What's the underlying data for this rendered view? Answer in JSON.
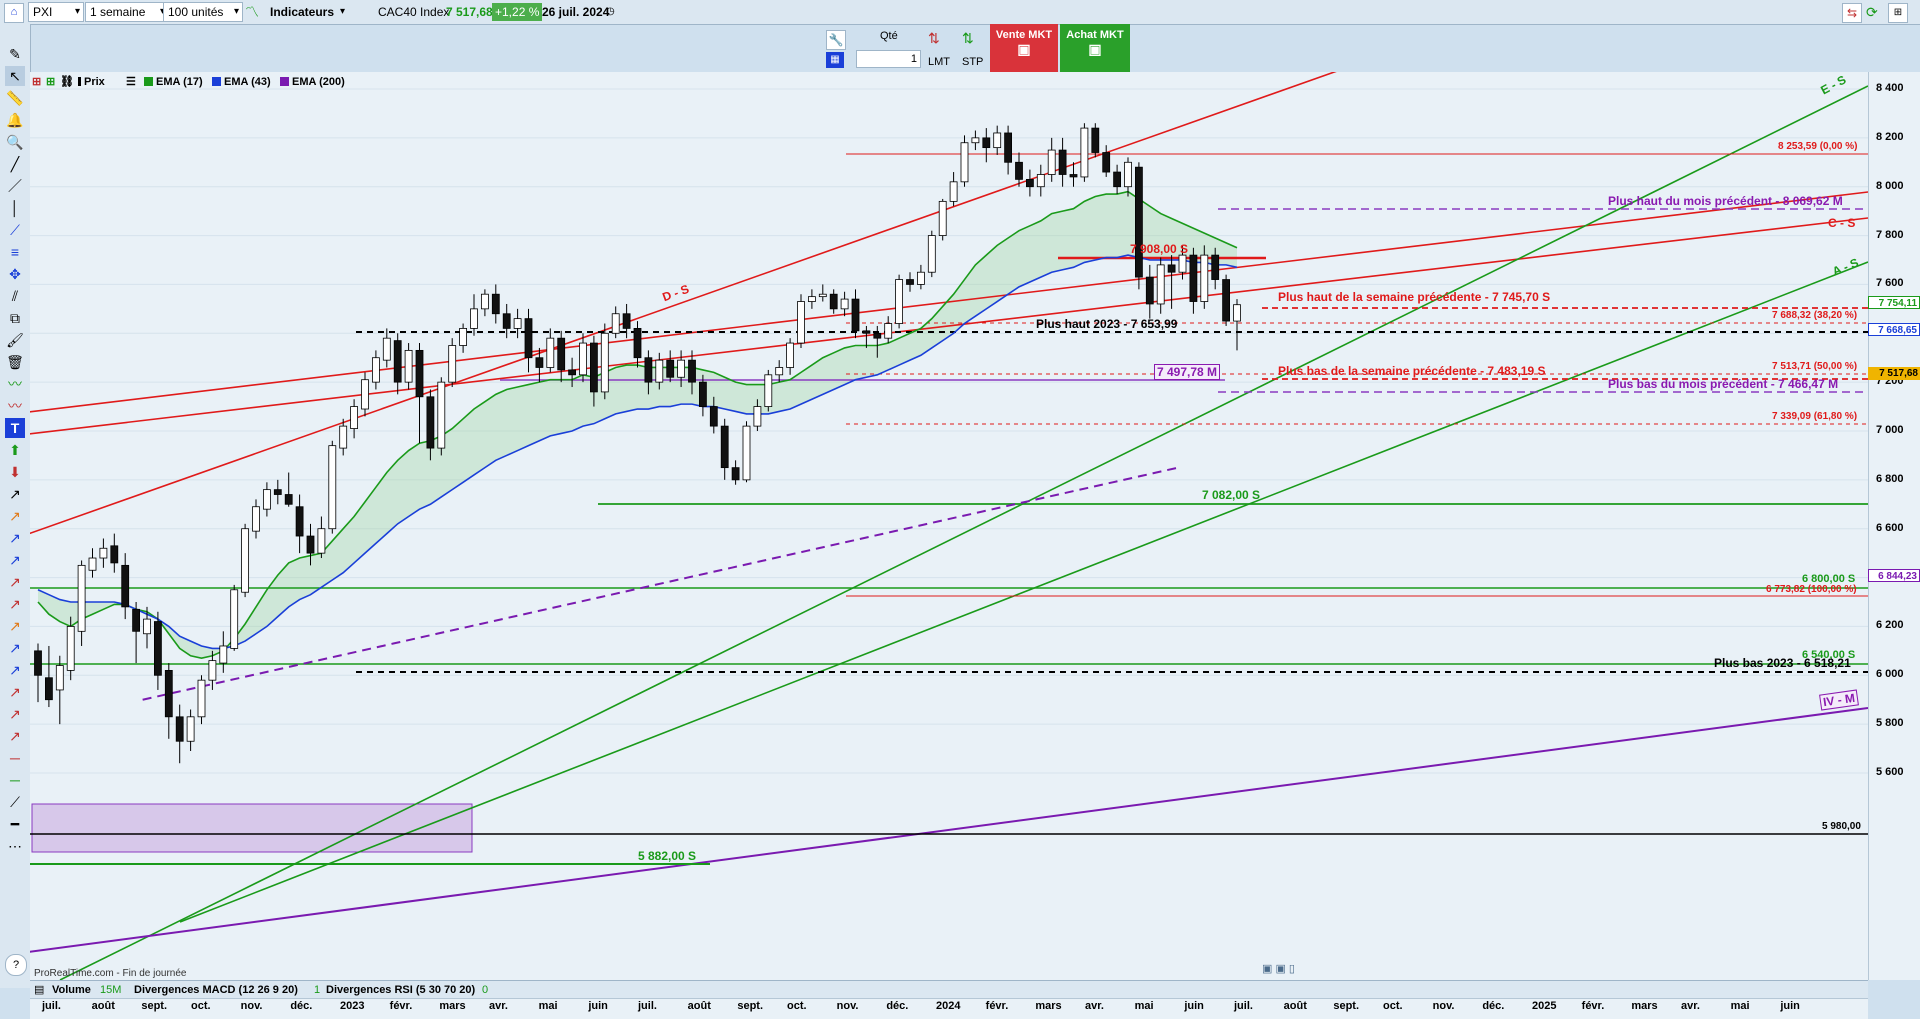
{
  "toolbar": {
    "instrument_code": "PXI",
    "timeframe": "1 semaine",
    "units": "100 unités",
    "indicators_label": "Indicateurs",
    "symbol": "CAC40 Index",
    "last_price": "7 517,68",
    "change": "+1,22 %",
    "date": "26 juil. 2024"
  },
  "order": {
    "qty_label": "Qté",
    "qty_value": "1",
    "lmt": "LMT",
    "stp": "STP",
    "sell": "Vente MKT",
    "buy": "Achat MKT"
  },
  "legend": {
    "price": "Prix",
    "ema17": "EMA (17)",
    "ema43": "EMA (43)",
    "ema200": "EMA (200)"
  },
  "colors": {
    "ema17": "#1a9a1a",
    "ema43": "#1a3fd8",
    "ema200": "#7a1ab0",
    "resistance": "#e01a1a",
    "support": "#1a9a1a"
  },
  "yaxis": {
    "labels": [
      "8 400",
      "8 200",
      "8 000",
      "7 800",
      "7 600",
      "7 400",
      "7 200",
      "7 000",
      "6 800",
      "6 600",
      "6 400",
      "6 200",
      "6 000",
      "5 800",
      "5 600"
    ],
    "tag_754": "7 754,11",
    "tag_766": "7 668,65",
    "tag_last": "7 517,68",
    "tag_684": "6 844,23"
  },
  "xaxis": {
    "labels": [
      "juil.",
      "août",
      "sept.",
      "oct.",
      "nov.",
      "déc.",
      "2023",
      "févr.",
      "mars",
      "avr.",
      "mai",
      "juin",
      "juil.",
      "août",
      "sept.",
      "oct.",
      "nov.",
      "déc.",
      "2024",
      "févr.",
      "mars",
      "avr.",
      "mai",
      "juin",
      "juil.",
      "août",
      "sept.",
      "oct.",
      "nov.",
      "déc.",
      "2025",
      "févr.",
      "mars",
      "avr.",
      "mai",
      "juin"
    ]
  },
  "annotations": {
    "fib0": "8 253,59 (0,00 %)",
    "fib382": "7 688,32 (38,20 %)",
    "fib50": "7 513,71 (50,00 %)",
    "fib618": "7 339,09 (61,80 %)",
    "fib100": "6 773,82 (100,00 %)",
    "prev_month_high": "Plus haut du mois précédent - 8 069,62 M",
    "prev_week_high": "Plus haut de la semaine précédente - 7 745,70 S",
    "prev_week_low": "Plus bas de la semaine précédente - 7 483,19 S",
    "prev_month_low": "Plus bas du mois précédent - 7 466,47 M",
    "high_2023": "Plus haut 2023 - 7 653,99",
    "low_2023": "Plus bas 2023 - 6 518,21",
    "s7908": "7 908,00 S",
    "s7497": "7 497,78 M",
    "s7082": "7 082,00 S",
    "s6800": "6 800,00 S",
    "s6540": "6 540,00 S",
    "s5980": "5 980,00",
    "s5882": "5 882,00 S",
    "trend_ds": "D - S",
    "trend_es": "E - S",
    "trend_cs": "C - S",
    "trend_as": "A - S",
    "trend_ivm": "IV - M"
  },
  "bottom": {
    "volume": "Volume",
    "volume_tf": "15M",
    "macd": "Divergences MACD (12 26 9 20)",
    "macd_val": "1",
    "rsi": "Divergences RSI (5 30 70 20)",
    "rsi_val": "0",
    "footer": "ProRealTime.com - Fin de journée"
  },
  "chart_data": {
    "type": "candlestick",
    "ylim": [
      5550,
      8620
    ],
    "candles": [
      [
        6100,
        6000,
        6130,
        5890
      ],
      [
        5990,
        5900,
        6120,
        5870
      ],
      [
        5940,
        6040,
        6080,
        5800
      ],
      [
        6020,
        6200,
        6240,
        5980
      ],
      [
        6180,
        6450,
        6470,
        6120
      ],
      [
        6430,
        6480,
        6520,
        6400
      ],
      [
        6480,
        6520,
        6560,
        6440
      ],
      [
        6530,
        6460,
        6580,
        6420
      ],
      [
        6450,
        6280,
        6500,
        6230
      ],
      [
        6270,
        6180,
        6300,
        6050
      ],
      [
        6170,
        6230,
        6280,
        6110
      ],
      [
        6220,
        6000,
        6260,
        5940
      ],
      [
        6020,
        5830,
        6050,
        5740
      ],
      [
        5830,
        5730,
        5880,
        5640
      ],
      [
        5730,
        5830,
        5860,
        5690
      ],
      [
        5830,
        5980,
        6000,
        5800
      ],
      [
        5980,
        6060,
        6100,
        5940
      ],
      [
        6050,
        6120,
        6180,
        6010
      ],
      [
        6110,
        6350,
        6370,
        6100
      ],
      [
        6340,
        6600,
        6620,
        6320
      ],
      [
        6590,
        6690,
        6720,
        6560
      ],
      [
        6680,
        6760,
        6790,
        6650
      ],
      [
        6760,
        6740,
        6800,
        6700
      ],
      [
        6740,
        6700,
        6830,
        6690
      ],
      [
        6690,
        6570,
        6740,
        6500
      ],
      [
        6570,
        6500,
        6620,
        6450
      ],
      [
        6500,
        6600,
        6650,
        6480
      ],
      [
        6600,
        6940,
        6960,
        6580
      ],
      [
        6930,
        7020,
        7050,
        6900
      ],
      [
        7010,
        7100,
        7130,
        6970
      ],
      [
        7090,
        7210,
        7240,
        7060
      ],
      [
        7200,
        7300,
        7330,
        7170
      ],
      [
        7290,
        7380,
        7420,
        7260
      ],
      [
        7370,
        7200,
        7400,
        7150
      ],
      [
        7200,
        7330,
        7360,
        7170
      ],
      [
        7330,
        7140,
        7360,
        6950
      ],
      [
        7140,
        6930,
        7170,
        6880
      ],
      [
        6930,
        7200,
        7220,
        6900
      ],
      [
        7200,
        7350,
        7380,
        7180
      ],
      [
        7350,
        7420,
        7440,
        7320
      ],
      [
        7420,
        7500,
        7560,
        7390
      ],
      [
        7500,
        7560,
        7580,
        7470
      ],
      [
        7560,
        7480,
        7600,
        7440
      ],
      [
        7480,
        7420,
        7520,
        7380
      ],
      [
        7420,
        7460,
        7500,
        7380
      ],
      [
        7460,
        7300,
        7500,
        7240
      ],
      [
        7300,
        7260,
        7340,
        7200
      ],
      [
        7260,
        7380,
        7420,
        7240
      ],
      [
        7380,
        7250,
        7410,
        7200
      ],
      [
        7250,
        7230,
        7300,
        7180
      ],
      [
        7230,
        7360,
        7400,
        7200
      ],
      [
        7360,
        7160,
        7390,
        7100
      ],
      [
        7160,
        7400,
        7440,
        7130
      ],
      [
        7400,
        7480,
        7510,
        7380
      ],
      [
        7480,
        7420,
        7520,
        7380
      ],
      [
        7420,
        7300,
        7450,
        7260
      ],
      [
        7300,
        7200,
        7330,
        7150
      ],
      [
        7200,
        7290,
        7320,
        7170
      ],
      [
        7290,
        7220,
        7330,
        7200
      ],
      [
        7220,
        7290,
        7330,
        7180
      ],
      [
        7290,
        7200,
        7330,
        7150
      ],
      [
        7200,
        7100,
        7230,
        7060
      ],
      [
        7100,
        7020,
        7140,
        6990
      ],
      [
        7020,
        6850,
        7050,
        6800
      ],
      [
        6850,
        6800,
        6880,
        6780
      ],
      [
        6800,
        7020,
        7040,
        6790
      ],
      [
        7020,
        7100,
        7130,
        7000
      ],
      [
        7100,
        7230,
        7250,
        7080
      ],
      [
        7230,
        7260,
        7290,
        7200
      ],
      [
        7260,
        7360,
        7380,
        7230
      ],
      [
        7360,
        7530,
        7560,
        7340
      ],
      [
        7530,
        7550,
        7580,
        7500
      ],
      [
        7550,
        7560,
        7600,
        7530
      ],
      [
        7560,
        7500,
        7580,
        7480
      ],
      [
        7500,
        7540,
        7570,
        7470
      ],
      [
        7540,
        7410,
        7580,
        7380
      ],
      [
        7410,
        7400,
        7430,
        7340
      ],
      [
        7400,
        7380,
        7430,
        7300
      ],
      [
        7380,
        7440,
        7470,
        7360
      ],
      [
        7440,
        7620,
        7640,
        7420
      ],
      [
        7620,
        7600,
        7650,
        7570
      ],
      [
        7600,
        7650,
        7680,
        7580
      ],
      [
        7650,
        7800,
        7820,
        7630
      ],
      [
        7800,
        7940,
        7950,
        7780
      ],
      [
        7940,
        8020,
        8060,
        7920
      ],
      [
        8020,
        8180,
        8210,
        8000
      ],
      [
        8180,
        8200,
        8230,
        8150
      ],
      [
        8200,
        8160,
        8240,
        8100
      ],
      [
        8160,
        8220,
        8250,
        8130
      ],
      [
        8220,
        8100,
        8250,
        8050
      ],
      [
        8100,
        8030,
        8140,
        8000
      ],
      [
        8030,
        8000,
        8070,
        7960
      ],
      [
        8000,
        8050,
        8090,
        7960
      ],
      [
        8050,
        8150,
        8200,
        8020
      ],
      [
        8150,
        8050,
        8200,
        8000
      ],
      [
        8050,
        8040,
        8100,
        8000
      ],
      [
        8040,
        8240,
        8260,
        8020
      ],
      [
        8240,
        8140,
        8260,
        8120
      ],
      [
        8140,
        8060,
        8170,
        8040
      ],
      [
        8060,
        8000,
        8090,
        7970
      ],
      [
        8000,
        8100,
        8120,
        7960
      ],
      [
        8080,
        7630,
        8100,
        7580
      ],
      [
        7630,
        7520,
        7680,
        7460
      ],
      [
        7520,
        7680,
        7710,
        7480
      ],
      [
        7680,
        7650,
        7720,
        7500
      ],
      [
        7650,
        7720,
        7760,
        7620
      ],
      [
        7720,
        7530,
        7750,
        7480
      ],
      [
        7530,
        7720,
        7760,
        7500
      ],
      [
        7720,
        7620,
        7750,
        7580
      ],
      [
        7620,
        7450,
        7640,
        7430
      ],
      [
        7450,
        7517,
        7540,
        7330
      ]
    ],
    "ema17": [
      6300,
      6250,
      6220,
      6200,
      6230,
      6250,
      6270,
      6290,
      6290,
      6270,
      6260,
      6230,
      6170,
      6110,
      6080,
      6070,
      6080,
      6100,
      6150,
      6210,
      6280,
      6350,
      6410,
      6460,
      6480,
      6490,
      6500,
      6550,
      6600,
      6650,
      6710,
      6770,
      6830,
      6880,
      6920,
      6950,
      6960,
      6980,
      7010,
      7050,
      7090,
      7120,
      7150,
      7170,
      7180,
      7190,
      7200,
      7210,
      7210,
      7210,
      7230,
      7220,
      7240,
      7260,
      7270,
      7270,
      7260,
      7260,
      7260,
      7260,
      7260,
      7250,
      7240,
      7220,
      7200,
      7190,
      7190,
      7190,
      7200,
      7210,
      7240,
      7270,
      7300,
      7320,
      7340,
      7350,
      7350,
      7350,
      7360,
      7380,
      7400,
      7420,
      7460,
      7510,
      7560,
      7620,
      7680,
      7720,
      7760,
      7790,
      7820,
      7840,
      7860,
      7890,
      7900,
      7910,
      7940,
      7960,
      7970,
      7970,
      7980,
      7950,
      7920,
      7890,
      7870,
      7850,
      7830,
      7810,
      7790,
      7770,
      7750
    ],
    "ema43": [
      6350,
      6330,
      6310,
      6300,
      6300,
      6300,
      6300,
      6300,
      6290,
      6270,
      6250,
      6230,
      6200,
      6160,
      6140,
      6120,
      6110,
      6110,
      6120,
      6140,
      6170,
      6200,
      6240,
      6280,
      6310,
      6330,
      6360,
      6390,
      6420,
      6460,
      6500,
      6540,
      6580,
      6620,
      6650,
      6680,
      6700,
      6730,
      6760,
      6790,
      6820,
      6850,
      6880,
      6900,
      6920,
      6940,
      6960,
      6980,
      6990,
      7000,
      7020,
      7030,
      7050,
      7070,
      7080,
      7090,
      7090,
      7100,
      7100,
      7110,
      7110,
      7100,
      7100,
      7090,
      7080,
      7070,
      7070,
      7070,
      7080,
      7090,
      7110,
      7130,
      7150,
      7170,
      7190,
      7210,
      7220,
      7230,
      7250,
      7270,
      7290,
      7310,
      7340,
      7370,
      7400,
      7440,
      7470,
      7500,
      7530,
      7560,
      7590,
      7610,
      7630,
      7650,
      7660,
      7670,
      7690,
      7700,
      7710,
      7710,
      7720,
      7710,
      7700,
      7700,
      7700,
      7700,
      7690,
      7690,
      7680,
      7680,
      7670
    ],
    "ema200": [
      5900,
      5910,
      5920,
      5930,
      5940,
      5950,
      5960,
      5970,
      5980,
      5990,
      6000,
      6010,
      6020,
      6030,
      6040,
      6050,
      6060,
      6070,
      6080,
      6090,
      6100,
      6110,
      6120,
      6130,
      6140,
      6150,
      6160,
      6170,
      6180,
      6190,
      6200,
      6210,
      6220,
      6230,
      6240,
      6250,
      6260,
      6270,
      6280,
      6290,
      6300,
      6310,
      6320,
      6330,
      6340,
      6350,
      6360,
      6370,
      6380,
      6390,
      6400,
      6410,
      6420,
      6430,
      6440,
      6450,
      6460,
      6470,
      6480,
      6490,
      6500,
      6510,
      6520,
      6530,
      6540,
      6550,
      6560,
      6570,
      6580,
      6590,
      6600,
      6610,
      6620,
      6630,
      6640,
      6650,
      6660,
      6670,
      6680,
      6690,
      6700,
      6710,
      6720,
      6730,
      6740,
      6750,
      6760,
      6770,
      6780,
      6790,
      6800,
      6810,
      6820,
      6830,
      6840,
      6850
    ]
  }
}
